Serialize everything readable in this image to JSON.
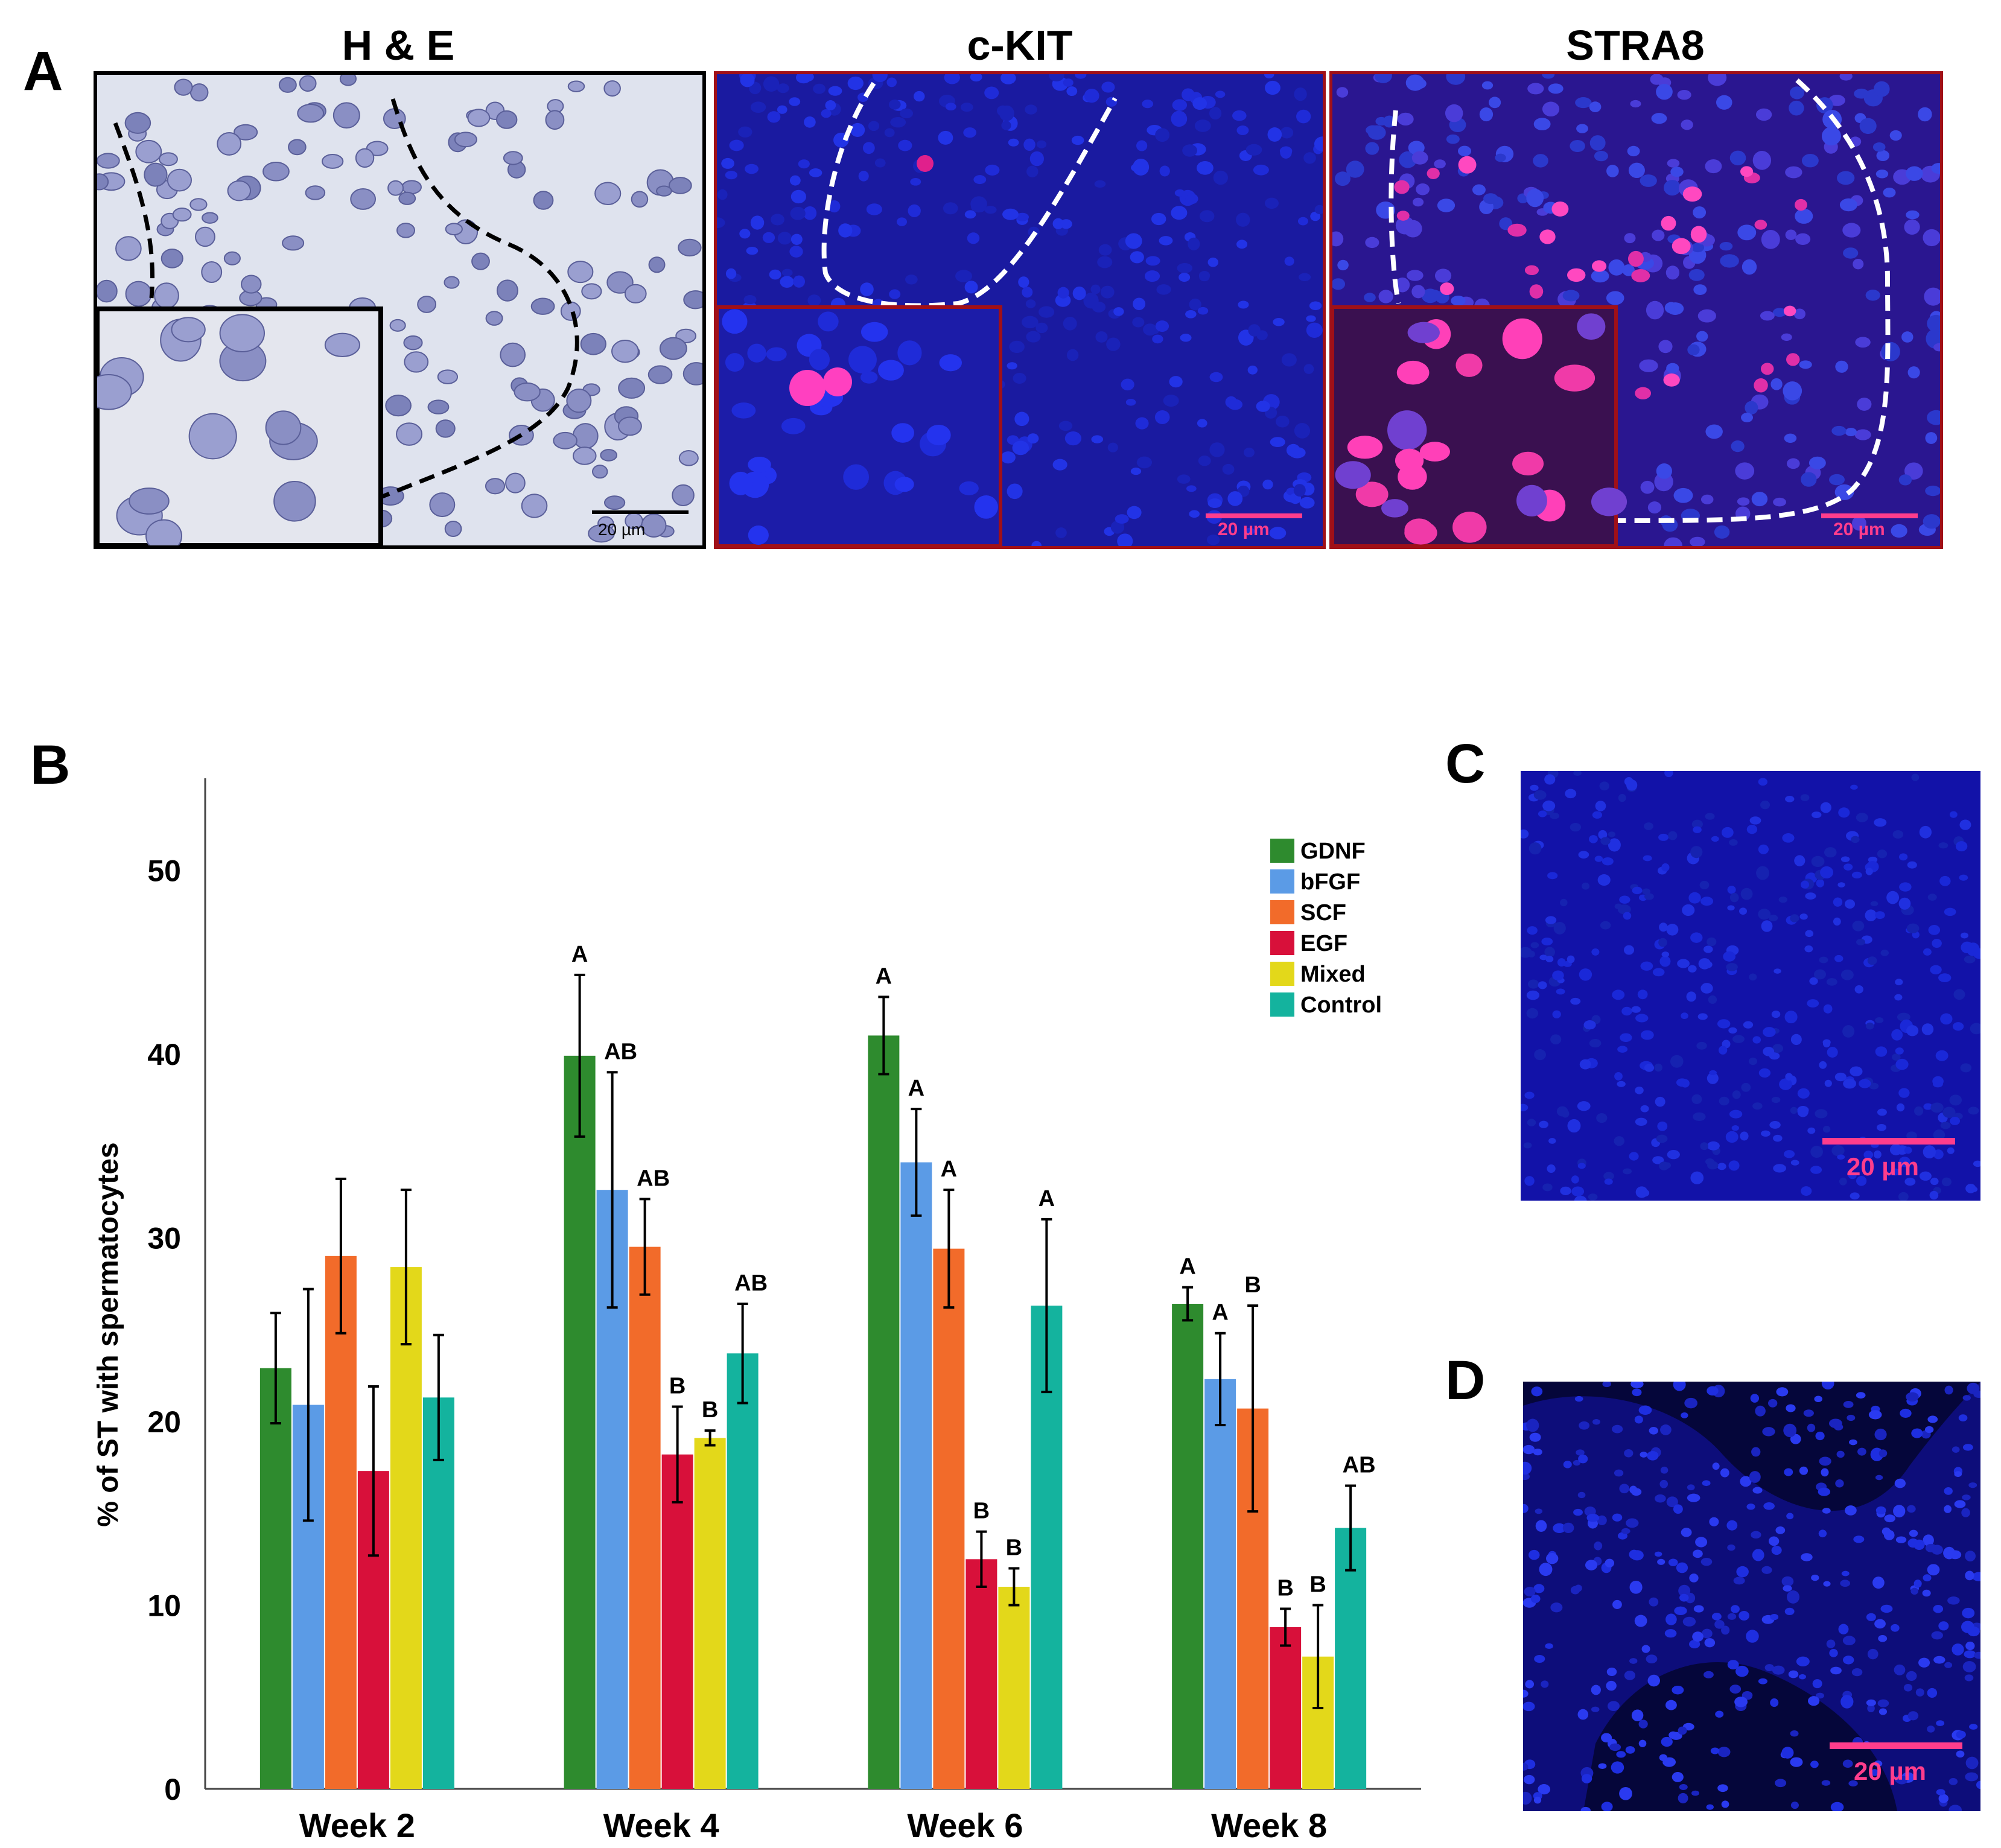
{
  "panel_a": {
    "letter": "A",
    "images": [
      {
        "title": "H & E",
        "scale_bar": "20 µm"
      },
      {
        "title": "c-KIT",
        "scale_bar": "20 µm"
      },
      {
        "title": "STRA8",
        "scale_bar": "20 µm"
      }
    ]
  },
  "panel_b": {
    "letter": "B"
  },
  "panel_c": {
    "letter": "C",
    "scale_bar": "20 µm"
  },
  "panel_d": {
    "letter": "D",
    "scale_bar": "20 µm"
  },
  "colors": {
    "GDNF": "#2e8b2e",
    "bFGF": "#5b9be6",
    "SCF": "#f26b2a",
    "EGF": "#d8103a",
    "Mixed": "#e3d81a",
    "Control": "#14b39e",
    "he_background": "#dfe3ee",
    "fluor_background": "#1a1aa0",
    "scale_bar_pink": "#ff3d8c"
  },
  "chart_data": {
    "type": "bar",
    "title": "",
    "xlabel": "",
    "ylabel": "% of ST with spermatocytes",
    "ylim": [
      0,
      55
    ],
    "yticks": [
      0,
      10,
      20,
      30,
      40,
      50
    ],
    "categories": [
      "Week 2",
      "Week 4",
      "Week 6",
      "Week 8"
    ],
    "legend_position": "top-right",
    "grid": false,
    "series": [
      {
        "name": "GDNF",
        "values": [
          22.9,
          39.9,
          41.0,
          26.4
        ],
        "errors": [
          3.0,
          4.4,
          2.1,
          0.9
        ],
        "letters": [
          "",
          "A",
          "A",
          "A"
        ]
      },
      {
        "name": "bFGF",
        "values": [
          20.9,
          32.6,
          34.1,
          22.3
        ],
        "errors": [
          6.3,
          6.4,
          2.9,
          2.5
        ],
        "letters": [
          "",
          "AB",
          "A",
          "A"
        ]
      },
      {
        "name": "SCF",
        "values": [
          29.0,
          29.5,
          29.4,
          20.7
        ],
        "errors": [
          4.2,
          2.6,
          3.2,
          5.6
        ],
        "letters": [
          "",
          "AB",
          "A",
          "B"
        ]
      },
      {
        "name": "EGF",
        "values": [
          17.3,
          18.2,
          12.5,
          8.8
        ],
        "errors": [
          4.6,
          2.6,
          1.5,
          1.0
        ],
        "letters": [
          "",
          "B",
          "B",
          "B"
        ]
      },
      {
        "name": "Mixed",
        "values": [
          28.4,
          19.1,
          11.0,
          7.2
        ],
        "errors": [
          4.2,
          0.4,
          1.0,
          2.8
        ],
        "letters": [
          "",
          "B",
          "B",
          "B"
        ]
      },
      {
        "name": "Control",
        "values": [
          21.3,
          23.7,
          26.3,
          14.2
        ],
        "errors": [
          3.4,
          2.7,
          4.7,
          2.3
        ],
        "letters": [
          "",
          "AB",
          "A",
          "AB"
        ]
      }
    ]
  }
}
